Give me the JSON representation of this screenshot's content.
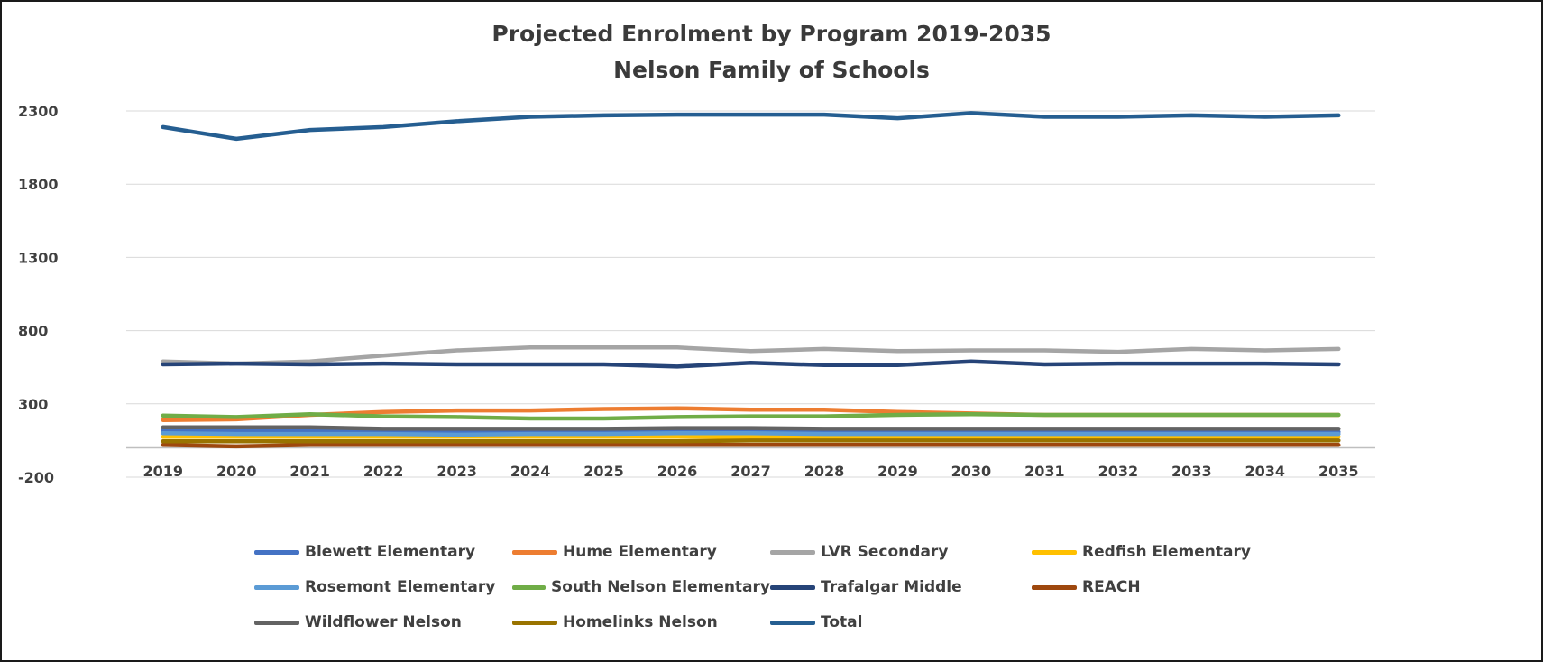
{
  "chart_data": {
    "type": "line",
    "title": "Projected Enrolment by Program 2019-2035",
    "subtitle": "Nelson Family of Schools",
    "xlabel": "",
    "ylabel": "",
    "ylim": [
      -200,
      2300
    ],
    "yticks": [
      -200,
      300,
      800,
      1300,
      1800,
      2300
    ],
    "grid": true,
    "legend_position": "bottom",
    "categories": [
      "2019",
      "2020",
      "2021",
      "2022",
      "2023",
      "2024",
      "2025",
      "2026",
      "2027",
      "2028",
      "2029",
      "2030",
      "2031",
      "2032",
      "2033",
      "2034",
      "2035"
    ],
    "series": [
      {
        "name": "Blewett Elementary",
        "color": "#4472c4",
        "values": [
          120,
          115,
          115,
          110,
          105,
          110,
          115,
          120,
          125,
          110,
          110,
          110,
          110,
          110,
          110,
          110,
          110
        ]
      },
      {
        "name": "Hume Elementary",
        "color": "#ed7d31",
        "values": [
          190,
          195,
          225,
          245,
          255,
          255,
          265,
          270,
          260,
          260,
          245,
          235,
          225,
          225,
          225,
          225,
          225
        ]
      },
      {
        "name": "LVR Secondary",
        "color": "#a5a5a5",
        "values": [
          590,
          575,
          590,
          630,
          665,
          685,
          685,
          685,
          660,
          675,
          660,
          665,
          665,
          655,
          675,
          665,
          675
        ]
      },
      {
        "name": "Redfish Elementary",
        "color": "#ffc000",
        "values": [
          75,
          75,
          75,
          75,
          75,
          75,
          75,
          75,
          75,
          75,
          75,
          75,
          75,
          75,
          75,
          75,
          75
        ]
      },
      {
        "name": "Rosemont Elementary",
        "color": "#5b9bd5",
        "values": [
          100,
          95,
          95,
          95,
          90,
          95,
          95,
          100,
          100,
          95,
          95,
          95,
          95,
          95,
          95,
          95,
          95
        ]
      },
      {
        "name": "South Nelson Elementary",
        "color": "#70ad47",
        "values": [
          220,
          210,
          230,
          215,
          210,
          200,
          200,
          210,
          215,
          215,
          225,
          230,
          225,
          225,
          225,
          225,
          225
        ]
      },
      {
        "name": "Trafalgar Middle",
        "color": "#264478",
        "values": [
          570,
          575,
          570,
          575,
          570,
          570,
          570,
          555,
          580,
          565,
          565,
          590,
          570,
          575,
          575,
          575,
          570
        ]
      },
      {
        "name": "REACH",
        "color": "#9e480e",
        "values": [
          20,
          10,
          20,
          20,
          20,
          20,
          20,
          20,
          20,
          20,
          20,
          20,
          20,
          20,
          20,
          20,
          20
        ]
      },
      {
        "name": "Wildflower Nelson",
        "color": "#636363",
        "values": [
          140,
          140,
          140,
          130,
          130,
          130,
          130,
          135,
          135,
          130,
          130,
          130,
          130,
          130,
          130,
          130,
          130
        ]
      },
      {
        "name": "Homelinks Nelson",
        "color": "#997300",
        "values": [
          45,
          45,
          45,
          45,
          45,
          45,
          45,
          45,
          50,
          50,
          50,
          50,
          50,
          50,
          50,
          50,
          50
        ]
      },
      {
        "name": "Total",
        "color": "#255e91",
        "values": [
          2190,
          2110,
          2170,
          2190,
          2230,
          2260,
          2270,
          2275,
          2275,
          2275,
          2250,
          2285,
          2260,
          2260,
          2270,
          2260,
          2270
        ]
      }
    ]
  }
}
